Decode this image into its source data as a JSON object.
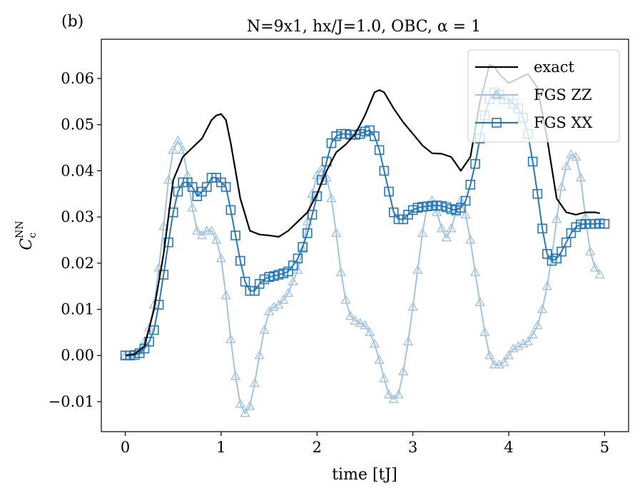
{
  "panel_label": "(b)",
  "chart_data": {
    "type": "line",
    "title": "N=9x1, hx/J=1.0, OBC, α = 1",
    "xlabel": "time [tJ]",
    "ylabel": "C",
    "ylabel_sub": "c",
    "ylabel_sup": "NN",
    "xlim": [
      -0.25,
      5.25
    ],
    "ylim": [
      -0.0165,
      0.0685
    ],
    "xticks": [
      0,
      1,
      2,
      3,
      4,
      5
    ],
    "xtick_labels": [
      "0",
      "1",
      "2",
      "3",
      "4",
      "5"
    ],
    "yticks": [
      -0.01,
      0.0,
      0.01,
      0.02,
      0.03,
      0.04,
      0.05,
      0.06
    ],
    "ytick_labels": [
      "−0.01",
      "0.00",
      "0.01",
      "0.02",
      "0.03",
      "0.04",
      "0.05",
      "0.06"
    ],
    "legend_position": "top-right",
    "series": [
      {
        "name": "exact",
        "color": "#000000",
        "marker": "none",
        "x": [
          0,
          0.1,
          0.2,
          0.3,
          0.4,
          0.5,
          0.6,
          0.7,
          0.8,
          0.9,
          0.95,
          1.0,
          1.05,
          1.1,
          1.2,
          1.3,
          1.4,
          1.5,
          1.6,
          1.7,
          1.8,
          1.9,
          2.0,
          2.1,
          2.2,
          2.3,
          2.4,
          2.5,
          2.6,
          2.65,
          2.7,
          2.8,
          2.9,
          3.0,
          3.1,
          3.2,
          3.3,
          3.4,
          3.5,
          3.6,
          3.7,
          3.8,
          3.85,
          3.9,
          4.0,
          4.1,
          4.2,
          4.3,
          4.4,
          4.5,
          4.6,
          4.7,
          4.8,
          4.9,
          4.95
        ],
        "y": [
          0.0,
          0.0003,
          0.002,
          0.01,
          0.022,
          0.038,
          0.043,
          0.045,
          0.047,
          0.051,
          0.052,
          0.0523,
          0.051,
          0.046,
          0.034,
          0.027,
          0.0262,
          0.026,
          0.0257,
          0.027,
          0.029,
          0.031,
          0.035,
          0.04,
          0.044,
          0.0457,
          0.048,
          0.052,
          0.057,
          0.0575,
          0.057,
          0.0535,
          0.0505,
          0.048,
          0.0455,
          0.0438,
          0.0437,
          0.043,
          0.04,
          0.043,
          0.055,
          0.063,
          0.0625,
          0.061,
          0.059,
          0.06,
          0.061,
          0.058,
          0.047,
          0.034,
          0.031,
          0.0305,
          0.031,
          0.031,
          0.0308
        ]
      },
      {
        "name": "FGS ZZ",
        "color": "#a3c3df",
        "marker": "triangle",
        "x": [
          0,
          0.05,
          0.1,
          0.15,
          0.2,
          0.25,
          0.3,
          0.35,
          0.4,
          0.45,
          0.5,
          0.55,
          0.6,
          0.65,
          0.7,
          0.75,
          0.8,
          0.85,
          0.9,
          0.95,
          1.0,
          1.05,
          1.1,
          1.15,
          1.2,
          1.25,
          1.3,
          1.35,
          1.4,
          1.45,
          1.5,
          1.55,
          1.6,
          1.65,
          1.7,
          1.75,
          1.8,
          1.85,
          1.9,
          1.95,
          2.0,
          2.05,
          2.1,
          2.15,
          2.2,
          2.25,
          2.3,
          2.35,
          2.4,
          2.45,
          2.5,
          2.55,
          2.6,
          2.65,
          2.7,
          2.75,
          2.8,
          2.85,
          2.9,
          2.95,
          3.0,
          3.05,
          3.1,
          3.15,
          3.2,
          3.25,
          3.3,
          3.35,
          3.4,
          3.45,
          3.5,
          3.55,
          3.6,
          3.65,
          3.7,
          3.75,
          3.8,
          3.85,
          3.9,
          3.95,
          4.0,
          4.05,
          4.1,
          4.15,
          4.2,
          4.25,
          4.3,
          4.35,
          4.4,
          4.45,
          4.5,
          4.55,
          4.6,
          4.65,
          4.7,
          4.75,
          4.8,
          4.85,
          4.9,
          4.95
        ],
        "y": [
          0.0,
          0.0,
          0.0003,
          0.001,
          0.003,
          0.006,
          0.011,
          0.019,
          0.028,
          0.038,
          0.0445,
          0.0465,
          0.0445,
          0.039,
          0.032,
          0.027,
          0.026,
          0.027,
          0.027,
          0.025,
          0.021,
          0.013,
          0.0035,
          -0.0045,
          -0.0105,
          -0.0125,
          -0.011,
          -0.006,
          0.0,
          0.0055,
          0.0095,
          0.0105,
          0.011,
          0.012,
          0.0135,
          0.016,
          0.0185,
          0.023,
          0.029,
          0.035,
          0.039,
          0.0405,
          0.0385,
          0.034,
          0.0265,
          0.018,
          0.012,
          0.0085,
          0.0075,
          0.007,
          0.0065,
          0.005,
          0.0025,
          -0.001,
          -0.005,
          -0.0085,
          -0.0095,
          -0.0085,
          -0.0035,
          0.003,
          0.0105,
          0.0185,
          0.0265,
          0.0325,
          0.0335,
          0.031,
          0.0275,
          0.0255,
          0.0275,
          0.031,
          0.0335,
          0.0305,
          0.025,
          0.018,
          0.0115,
          0.005,
          0.0,
          -0.002,
          -0.002,
          -0.0015,
          0.0,
          0.0015,
          0.002,
          0.0025,
          0.003,
          0.0045,
          0.0065,
          0.01,
          0.015,
          0.0215,
          0.0295,
          0.0365,
          0.041,
          0.0435,
          0.043,
          0.0385,
          0.03,
          0.0225,
          0.019,
          0.0175
        ]
      },
      {
        "name": "FGS XX",
        "color": "#2878b5",
        "marker": "square",
        "x": [
          0,
          0.05,
          0.1,
          0.15,
          0.2,
          0.25,
          0.3,
          0.35,
          0.4,
          0.45,
          0.5,
          0.55,
          0.6,
          0.65,
          0.7,
          0.75,
          0.8,
          0.85,
          0.9,
          0.95,
          1.0,
          1.05,
          1.1,
          1.15,
          1.2,
          1.25,
          1.3,
          1.35,
          1.4,
          1.45,
          1.5,
          1.55,
          1.6,
          1.65,
          1.7,
          1.75,
          1.8,
          1.85,
          1.9,
          1.95,
          2.0,
          2.05,
          2.1,
          2.15,
          2.2,
          2.25,
          2.3,
          2.35,
          2.4,
          2.45,
          2.5,
          2.55,
          2.6,
          2.65,
          2.7,
          2.75,
          2.8,
          2.85,
          2.9,
          2.95,
          3.0,
          3.05,
          3.1,
          3.15,
          3.2,
          3.25,
          3.3,
          3.35,
          3.4,
          3.45,
          3.5,
          3.55,
          3.6,
          3.65,
          3.7,
          3.75,
          3.8,
          3.85,
          3.9,
          3.95,
          4.0,
          4.05,
          4.1,
          4.15,
          4.2,
          4.25,
          4.3,
          4.35,
          4.4,
          4.45,
          4.5,
          4.55,
          4.6,
          4.65,
          4.7,
          4.75,
          4.8,
          4.85,
          4.9,
          4.95,
          5.0
        ],
        "y": [
          0.0,
          0.0,
          0.0001,
          0.0005,
          0.0015,
          0.003,
          0.0055,
          0.011,
          0.0175,
          0.0245,
          0.031,
          0.0355,
          0.0375,
          0.0375,
          0.0365,
          0.0345,
          0.0355,
          0.0365,
          0.0385,
          0.0385,
          0.0375,
          0.0365,
          0.0315,
          0.026,
          0.0205,
          0.016,
          0.014,
          0.014,
          0.0155,
          0.0165,
          0.017,
          0.0172,
          0.0175,
          0.0178,
          0.0182,
          0.0195,
          0.021,
          0.0235,
          0.0265,
          0.0305,
          0.0345,
          0.038,
          0.042,
          0.046,
          0.0475,
          0.048,
          0.048,
          0.0478,
          0.0478,
          0.048,
          0.0485,
          0.0488,
          0.0475,
          0.0445,
          0.04,
          0.0355,
          0.031,
          0.0295,
          0.0295,
          0.0305,
          0.0315,
          0.032,
          0.0322,
          0.0323,
          0.0324,
          0.0325,
          0.0324,
          0.0321,
          0.0317,
          0.0315,
          0.032,
          0.0335,
          0.037,
          0.0415,
          0.047,
          0.052,
          0.0555,
          0.057,
          0.0565,
          0.0555,
          0.0555,
          0.0545,
          0.0535,
          0.0515,
          0.048,
          0.042,
          0.035,
          0.0275,
          0.022,
          0.0205,
          0.021,
          0.0225,
          0.0245,
          0.0265,
          0.0278,
          0.0284,
          0.0285,
          0.0285,
          0.0285,
          0.0286,
          0.0285
        ]
      }
    ]
  }
}
